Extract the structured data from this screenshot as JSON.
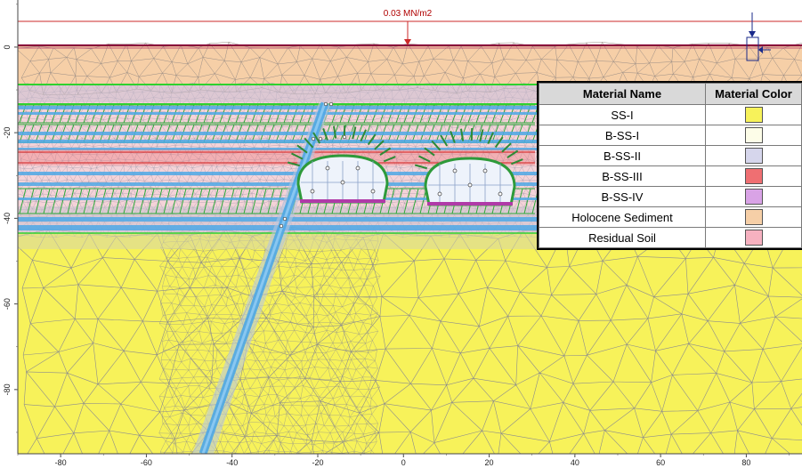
{
  "load_label": "0.03 MN/m2",
  "x_axis": {
    "ticks": [
      -80,
      -60,
      -40,
      -20,
      0,
      20,
      40,
      60,
      80
    ],
    "range": [
      -90,
      93
    ]
  },
  "y_axis": {
    "ticks": [
      0,
      -20,
      -40,
      -60,
      -80
    ],
    "range": [
      -95,
      11
    ]
  },
  "legend": {
    "header_name": "Material Name",
    "header_color": "Material Color",
    "rows": [
      {
        "name": "SS-I",
        "color": "#f7f25a"
      },
      {
        "name": "B-SS-I",
        "color": "#fdfde8"
      },
      {
        "name": "B-SS-II",
        "color": "#d6d6ec"
      },
      {
        "name": "B-SS-III",
        "color": "#ef6f72"
      },
      {
        "name": "B-SS-IV",
        "color": "#d9a3e6"
      },
      {
        "name": "Holocene Sediment",
        "color": "#f6cfa7"
      },
      {
        "name": "Residual Soil",
        "color": "#f6b1c0"
      }
    ]
  },
  "colors": {
    "background": "#ffffff",
    "load_line": "#cc2a2a",
    "ground_line": "#8a0a3a",
    "mesh_line": "#8d8d8d",
    "blue_band": "#4ea8e6",
    "green_bolts": "#2eaa3a",
    "tunnel_lining": "#2e9a3a",
    "tunnel_inner": "#eef3fb",
    "invert": "#b03aa8",
    "marker_arrow": "#1a2a8a"
  }
}
